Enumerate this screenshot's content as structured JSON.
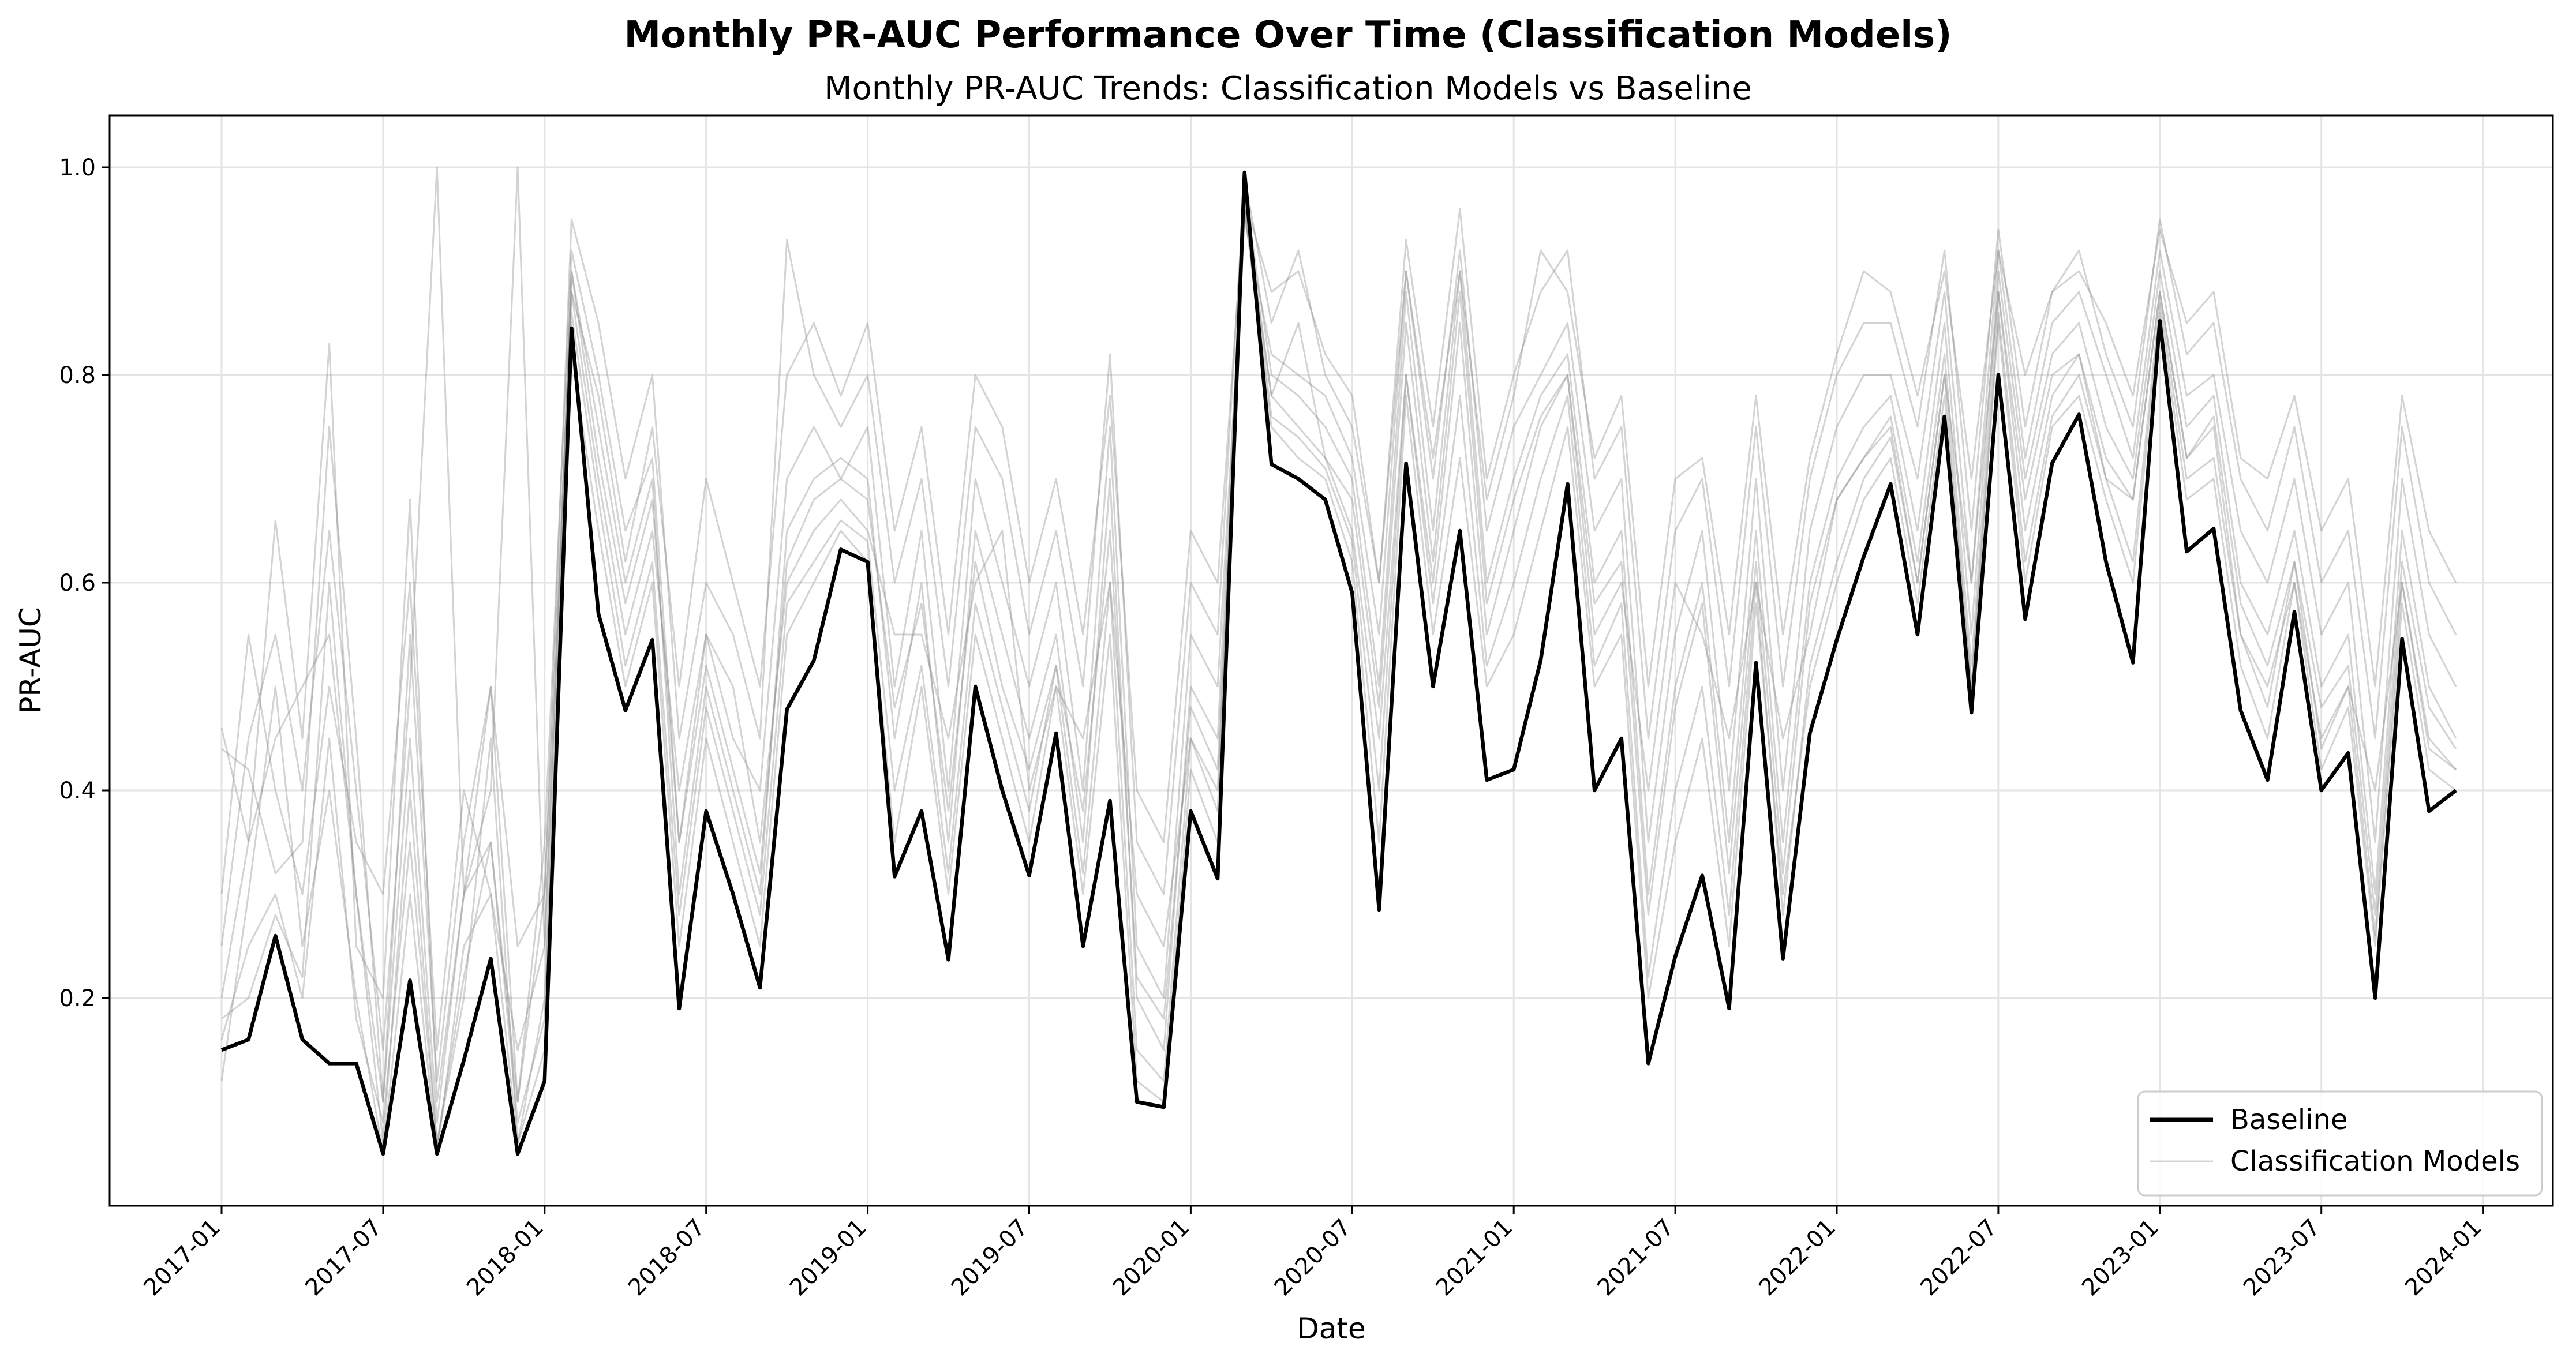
{
  "chart_data": {
    "type": "line",
    "title": "Monthly PR-AUC Performance Over Time (Classification Models)",
    "subtitle": "Monthly PR-AUC Trends: Classification Models vs Baseline",
    "xlabel": "Date",
    "ylabel": "PR-AUC",
    "x_ticks": [
      "2017-01",
      "2017-07",
      "2018-01",
      "2018-07",
      "2019-01",
      "2019-07",
      "2020-01",
      "2020-07",
      "2021-01",
      "2021-07",
      "2022-01",
      "2022-07",
      "2023-01",
      "2023-07",
      "2024-01"
    ],
    "y_ticks": [
      "0.2",
      "0.4",
      "0.6",
      "0.8",
      "1.0"
    ],
    "ylim": [
      0.0,
      1.05
    ],
    "grid": true,
    "legend_position": "lower-right",
    "legend": [
      "Baseline",
      "Classification Models"
    ],
    "colors": {
      "baseline": "#000000",
      "models": "#808080"
    },
    "x": [
      "2017-01",
      "2017-02",
      "2017-03",
      "2017-04",
      "2017-05",
      "2017-06",
      "2017-07",
      "2017-08",
      "2017-09",
      "2017-10",
      "2017-11",
      "2017-12",
      "2018-01",
      "2018-02",
      "2018-03",
      "2018-04",
      "2018-05",
      "2018-06",
      "2018-07",
      "2018-08",
      "2018-09",
      "2018-10",
      "2018-11",
      "2018-12",
      "2019-01",
      "2019-02",
      "2019-03",
      "2019-04",
      "2019-05",
      "2019-06",
      "2019-07",
      "2019-08",
      "2019-09",
      "2019-10",
      "2019-11",
      "2019-12",
      "2020-01",
      "2020-02",
      "2020-03",
      "2020-04",
      "2020-05",
      "2020-06",
      "2020-07",
      "2020-08",
      "2020-09",
      "2020-10",
      "2020-11",
      "2020-12",
      "2021-01",
      "2021-02",
      "2021-03",
      "2021-04",
      "2021-05",
      "2021-06",
      "2021-07",
      "2021-08",
      "2021-09",
      "2021-10",
      "2021-11",
      "2021-12",
      "2022-01",
      "2022-02",
      "2022-03",
      "2022-04",
      "2022-05",
      "2022-06",
      "2022-07",
      "2022-08",
      "2022-09",
      "2022-10",
      "2022-11",
      "2022-12",
      "2023-01",
      "2023-02",
      "2023-03",
      "2023-04",
      "2023-05",
      "2023-06",
      "2023-07",
      "2023-08",
      "2023-09",
      "2023-10",
      "2023-11",
      "2023-12"
    ],
    "series": [
      {
        "name": "Baseline",
        "values": [
          0.15,
          0.16,
          0.26,
          0.16,
          0.137,
          0.137,
          0.05,
          0.217,
          0.05,
          0.14,
          0.238,
          0.05,
          0.12,
          0.845,
          0.57,
          0.477,
          0.545,
          0.19,
          0.38,
          0.3,
          0.21,
          0.478,
          0.525,
          0.632,
          0.62,
          0.317,
          0.38,
          0.237,
          0.5,
          0.4,
          0.318,
          0.455,
          0.25,
          0.39,
          0.1,
          0.095,
          0.38,
          0.315,
          0.995,
          0.714,
          0.7,
          0.68,
          0.59,
          0.285,
          0.715,
          0.5,
          0.65,
          0.41,
          0.42,
          0.525,
          0.695,
          0.4,
          0.45,
          0.137,
          0.24,
          0.318,
          0.19,
          0.523,
          0.238,
          0.455,
          0.545,
          0.625,
          0.695,
          0.55,
          0.76,
          0.475,
          0.8,
          0.565,
          0.715,
          0.762,
          0.62,
          0.523,
          0.852,
          0.63,
          0.652,
          0.477,
          0.41,
          0.572,
          0.4,
          0.436,
          0.2,
          0.546,
          0.38,
          0.4
        ]
      },
      {
        "values": [
          0.18,
          0.2,
          0.28,
          0.22,
          0.6,
          0.3,
          0.06,
          0.4,
          0.06,
          0.2,
          0.45,
          0.06,
          0.2,
          0.9,
          0.75,
          0.6,
          0.7,
          0.3,
          0.5,
          0.4,
          0.3,
          0.65,
          0.7,
          0.72,
          0.7,
          0.45,
          0.6,
          0.35,
          0.65,
          0.55,
          0.45,
          0.55,
          0.35,
          0.7,
          0.2,
          0.15,
          0.5,
          0.45,
          0.98,
          0.8,
          0.78,
          0.75,
          0.7,
          0.5,
          0.88,
          0.65,
          0.9,
          0.6,
          0.7,
          0.78,
          0.82,
          0.6,
          0.65,
          0.3,
          0.5,
          0.6,
          0.35,
          0.65,
          0.35,
          0.6,
          0.7,
          0.75,
          0.78,
          0.65,
          0.85,
          0.55,
          0.9,
          0.7,
          0.82,
          0.85,
          0.75,
          0.7,
          0.9,
          0.75,
          0.78,
          0.6,
          0.55,
          0.65,
          0.5,
          0.55,
          0.3,
          0.65,
          0.5,
          0.45
        ]
      },
      {
        "values": [
          0.44,
          0.42,
          0.32,
          0.35,
          0.75,
          0.45,
          0.1,
          0.55,
          0.12,
          0.35,
          0.5,
          0.1,
          0.35,
          0.92,
          0.8,
          0.65,
          0.72,
          0.35,
          0.55,
          0.45,
          0.4,
          0.7,
          0.75,
          0.7,
          0.75,
          0.5,
          0.65,
          0.4,
          0.7,
          0.6,
          0.5,
          0.6,
          0.4,
          0.75,
          0.25,
          0.2,
          0.55,
          0.5,
          0.95,
          0.82,
          0.8,
          0.78,
          0.72,
          0.55,
          0.9,
          0.7,
          0.92,
          0.65,
          0.75,
          0.8,
          0.85,
          0.65,
          0.7,
          0.35,
          0.55,
          0.65,
          0.4,
          0.7,
          0.4,
          0.65,
          0.75,
          0.8,
          0.8,
          0.7,
          0.88,
          0.6,
          0.92,
          0.72,
          0.85,
          0.88,
          0.8,
          0.72,
          0.92,
          0.78,
          0.8,
          0.65,
          0.6,
          0.7,
          0.55,
          0.6,
          0.35,
          0.7,
          0.55,
          0.5
        ]
      },
      {
        "values": [
          0.3,
          0.55,
          0.4,
          0.3,
          0.5,
          0.35,
          0.3,
          0.6,
          0.15,
          0.4,
          0.3,
          0.15,
          0.25,
          0.88,
          0.7,
          0.55,
          0.65,
          0.4,
          0.55,
          0.5,
          0.35,
          0.6,
          0.65,
          0.68,
          0.65,
          0.55,
          0.55,
          0.45,
          0.6,
          0.65,
          0.4,
          0.5,
          0.45,
          0.6,
          0.3,
          0.25,
          0.45,
          0.4,
          0.97,
          0.78,
          0.85,
          0.72,
          0.65,
          0.45,
          0.8,
          0.6,
          0.85,
          0.55,
          0.65,
          0.75,
          0.8,
          0.55,
          0.6,
          0.4,
          0.6,
          0.55,
          0.45,
          0.6,
          0.45,
          0.55,
          0.68,
          0.72,
          0.75,
          0.6,
          0.8,
          0.6,
          0.88,
          0.65,
          0.78,
          0.82,
          0.7,
          0.68,
          0.88,
          0.72,
          0.75,
          0.55,
          0.5,
          0.6,
          0.45,
          0.5,
          0.4,
          0.6,
          0.45,
          0.42
        ]
      },
      {
        "values": [
          0.2,
          0.35,
          0.66,
          0.45,
          0.83,
          0.25,
          0.2,
          0.68,
          0.1,
          0.3,
          0.35,
          0.1,
          0.3,
          0.95,
          0.85,
          0.7,
          0.8,
          0.45,
          0.6,
          0.55,
          0.45,
          0.93,
          0.8,
          0.75,
          0.8,
          0.6,
          0.7,
          0.5,
          0.75,
          0.7,
          0.55,
          0.65,
          0.5,
          0.82,
          0.35,
          0.3,
          0.6,
          0.55,
          0.99,
          0.85,
          0.92,
          0.8,
          0.75,
          0.6,
          0.93,
          0.75,
          0.96,
          0.7,
          0.8,
          0.88,
          0.92,
          0.7,
          0.75,
          0.45,
          0.65,
          0.7,
          0.5,
          0.75,
          0.5,
          0.7,
          0.8,
          0.85,
          0.85,
          0.75,
          0.92,
          0.65,
          0.94,
          0.75,
          0.88,
          0.92,
          0.82,
          0.75,
          0.95,
          0.82,
          0.85,
          0.7,
          0.65,
          0.75,
          0.6,
          0.65,
          0.45,
          0.75,
          0.6,
          0.55
        ]
      },
      {
        "values": [
          0.12,
          0.3,
          0.5,
          0.25,
          0.4,
          0.2,
          0.05,
          0.3,
          0.05,
          0.25,
          0.3,
          0.06,
          0.15,
          0.82,
          0.65,
          0.5,
          0.6,
          0.25,
          0.45,
          0.35,
          0.25,
          0.55,
          0.6,
          0.65,
          0.62,
          0.35,
          0.5,
          0.3,
          0.55,
          0.45,
          0.35,
          0.5,
          0.3,
          0.55,
          0.12,
          0.1,
          0.42,
          0.35,
          0.96,
          0.75,
          0.72,
          0.7,
          0.62,
          0.35,
          0.78,
          0.55,
          0.72,
          0.5,
          0.55,
          0.65,
          0.75,
          0.5,
          0.55,
          0.2,
          0.35,
          0.45,
          0.25,
          0.58,
          0.3,
          0.5,
          0.6,
          0.68,
          0.72,
          0.58,
          0.78,
          0.5,
          0.85,
          0.6,
          0.75,
          0.78,
          0.68,
          0.6,
          0.86,
          0.68,
          0.7,
          0.52,
          0.45,
          0.6,
          0.42,
          0.48,
          0.25,
          0.58,
          0.42,
          0.4
        ]
      },
      {
        "values": [
          0.25,
          0.45,
          0.55,
          0.4,
          0.65,
          0.4,
          0.15,
          0.5,
          1.0,
          0.3,
          0.4,
          1.0,
          0.25,
          0.9,
          0.72,
          0.58,
          0.68,
          0.35,
          0.52,
          0.42,
          0.32,
          0.62,
          0.68,
          0.7,
          0.68,
          0.48,
          0.58,
          0.38,
          0.62,
          0.5,
          0.42,
          0.52,
          0.38,
          0.65,
          0.22,
          0.18,
          0.48,
          0.42,
          0.96,
          0.78,
          0.75,
          0.72,
          0.68,
          0.48,
          0.85,
          0.62,
          0.88,
          0.58,
          0.68,
          0.76,
          0.8,
          0.58,
          0.62,
          0.28,
          0.48,
          0.58,
          0.32,
          0.62,
          0.32,
          0.58,
          0.68,
          0.72,
          0.76,
          0.62,
          0.82,
          0.52,
          0.88,
          0.68,
          0.8,
          0.82,
          0.72,
          0.68,
          0.88,
          0.72,
          0.76,
          0.58,
          0.52,
          0.62,
          0.48,
          0.52,
          0.28,
          0.62,
          0.48,
          0.44
        ]
      },
      {
        "values": [
          0.46,
          0.35,
          0.45,
          0.5,
          0.55,
          0.3,
          0.1,
          0.45,
          0.08,
          0.3,
          0.5,
          0.25,
          0.3,
          0.88,
          0.78,
          0.62,
          0.75,
          0.5,
          0.7,
          0.6,
          0.5,
          0.8,
          0.85,
          0.78,
          0.85,
          0.65,
          0.75,
          0.55,
          0.8,
          0.75,
          0.6,
          0.7,
          0.55,
          0.78,
          0.4,
          0.35,
          0.65,
          0.6,
          0.97,
          0.88,
          0.9,
          0.82,
          0.78,
          0.6,
          0.9,
          0.72,
          0.9,
          0.68,
          0.78,
          0.92,
          0.88,
          0.72,
          0.78,
          0.5,
          0.7,
          0.72,
          0.55,
          0.78,
          0.55,
          0.72,
          0.82,
          0.9,
          0.88,
          0.78,
          0.9,
          0.7,
          0.92,
          0.8,
          0.88,
          0.9,
          0.85,
          0.78,
          0.94,
          0.85,
          0.88,
          0.72,
          0.7,
          0.78,
          0.65,
          0.7,
          0.5,
          0.78,
          0.65,
          0.6
        ]
      },
      {
        "values": [
          0.16,
          0.25,
          0.3,
          0.2,
          0.45,
          0.18,
          0.08,
          0.35,
          0.06,
          0.22,
          0.35,
          0.08,
          0.18,
          0.86,
          0.68,
          0.52,
          0.62,
          0.28,
          0.48,
          0.38,
          0.28,
          0.58,
          0.62,
          0.66,
          0.64,
          0.4,
          0.52,
          0.32,
          0.58,
          0.48,
          0.38,
          0.52,
          0.32,
          0.6,
          0.15,
          0.12,
          0.45,
          0.38,
          0.97,
          0.76,
          0.74,
          0.71,
          0.64,
          0.4,
          0.8,
          0.58,
          0.78,
          0.52,
          0.6,
          0.7,
          0.78,
          0.52,
          0.58,
          0.22,
          0.4,
          0.5,
          0.28,
          0.6,
          0.28,
          0.52,
          0.62,
          0.7,
          0.74,
          0.6,
          0.8,
          0.5,
          0.86,
          0.62,
          0.76,
          0.8,
          0.7,
          0.62,
          0.87,
          0.7,
          0.72,
          0.55,
          0.48,
          0.62,
          0.44,
          0.5,
          0.26,
          0.6,
          0.44,
          0.42
        ]
      }
    ]
  }
}
